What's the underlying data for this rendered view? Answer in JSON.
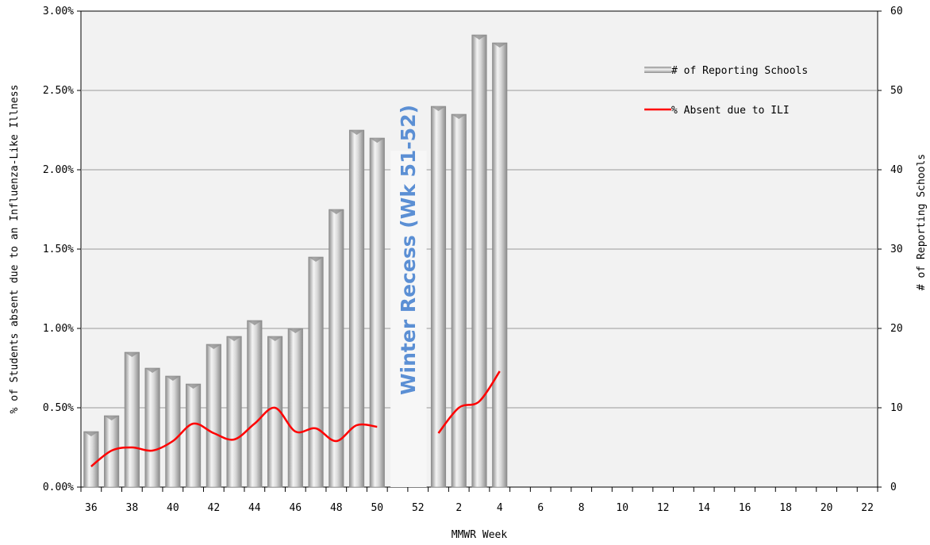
{
  "chart_data": {
    "type": "bar",
    "xlabel": "MMWR Week",
    "ylabel_left": "% of Students absent due to an Influenza-Like Illness",
    "ylabel_right": "# of Reporting Schools",
    "weeks": [
      "36",
      "37",
      "38",
      "39",
      "40",
      "41",
      "42",
      "43",
      "44",
      "45",
      "46",
      "47",
      "48",
      "49",
      "50",
      "51",
      "52",
      "1",
      "2",
      "3",
      "4",
      "5",
      "6",
      "7",
      "8",
      "9",
      "10",
      "11",
      "12",
      "13",
      "14",
      "15",
      "16",
      "17",
      "18",
      "19",
      "20",
      "21",
      "22"
    ],
    "x_tick_labels": [
      "36",
      "38",
      "40",
      "42",
      "44",
      "46",
      "48",
      "50",
      "52",
      "2",
      "4",
      "6",
      "8",
      "10",
      "12",
      "14",
      "16",
      "18",
      "20",
      "22"
    ],
    "y_left_ticks": [
      "0.00%",
      "0.50%",
      "1.00%",
      "1.50%",
      "2.00%",
      "2.50%",
      "3.00%"
    ],
    "y_left_range": [
      0,
      3.0
    ],
    "y_right_ticks": [
      "0",
      "10",
      "20",
      "30",
      "40",
      "50",
      "60"
    ],
    "y_right_range": [
      0,
      60
    ],
    "grid": true,
    "legend_position": "top-right",
    "annotation": {
      "text": "Winter Recess (Wk 51-52)",
      "weeks": [
        "51",
        "52"
      ],
      "color": "#5b8fd4"
    },
    "series": [
      {
        "name": "# of Reporting Schools",
        "kind": "bar",
        "axis": "right",
        "values": [
          7,
          9,
          17,
          15,
          14,
          13,
          18,
          19,
          21,
          19,
          20,
          29,
          35,
          45,
          44,
          null,
          null,
          48,
          47,
          57,
          56,
          null,
          null,
          null,
          null,
          null,
          null,
          null,
          null,
          null,
          null,
          null,
          null,
          null,
          null,
          null,
          null,
          null,
          null
        ],
        "color": "#b4b4b4"
      },
      {
        "name": "% Absent due to ILI",
        "kind": "line",
        "axis": "left",
        "values": [
          0.13,
          0.23,
          0.25,
          0.23,
          0.29,
          0.4,
          0.34,
          0.3,
          0.4,
          0.5,
          0.35,
          0.37,
          0.29,
          0.39,
          0.38,
          null,
          null,
          0.34,
          0.5,
          0.54,
          0.73,
          null,
          null,
          null,
          null,
          null,
          null,
          null,
          null,
          null,
          null,
          null,
          null,
          null,
          null,
          null,
          null,
          null,
          null
        ],
        "color": "#ff0000"
      }
    ]
  }
}
